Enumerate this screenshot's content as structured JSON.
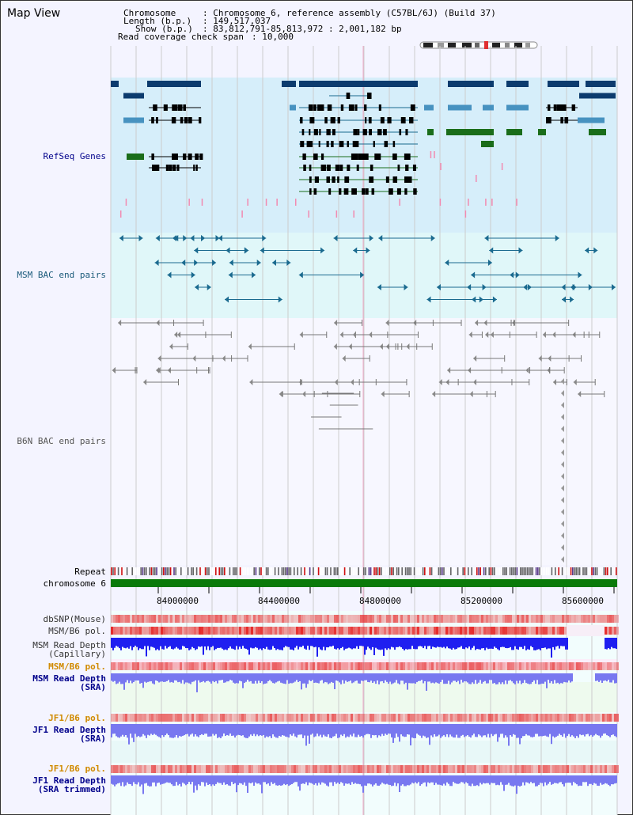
{
  "title": "Map View",
  "info": {
    "chromosome_key": "Chromosome",
    "chromosome_val": ": Chromosome 6, reference assembly (C57BL/6J) (Build 37)",
    "length_key": "Length (b.p.)",
    "length_val": ": 149,517,037",
    "show_key": "Show (b.p.)",
    "show_val": ": 83,812,791-85,813,972 : 2,001,182 bp",
    "span_key": "Read coverage check span",
    "span_val": ": 10,000"
  },
  "tracks": {
    "refseq": "RefSeq Genes",
    "msm_bac": "MSM BAC end pairs",
    "b6n_bac": "B6N BAC end pairs",
    "repeat": "Repeat",
    "chromosome": "chromosome 6",
    "dbsnp": "dbSNP(Mouse)",
    "msm_b6_pol_1": "MSM/B6 pol.",
    "msm_depth_cap": "MSM Read Depth\n(Capillary)",
    "msm_b6_pol_2": "MSM/B6 pol.",
    "msm_depth_sra": "MSM Read Depth\n(SRA)",
    "jf1_b6_pol_1": "JF1/B6 pol.",
    "jf1_depth_sra": "JF1 Read Depth\n(SRA)",
    "jf1_b6_pol_2": "JF1/B6 pol.",
    "jf1_depth_trim": "JF1 Read Depth\n(SRA trimmed)"
  },
  "axis_ticks": [
    "84000000",
    "84400000",
    "84800000",
    "85200000",
    "85600000"
  ],
  "colors": {
    "refseq_bg": "#d6eefa",
    "msm_bg": "#e0f7f9",
    "gene_dark": "#0c3b6e",
    "gene_mid": "#4792c0",
    "gene_green": "#1a6d1a",
    "msm_blue": "#1a6a8f",
    "b6n_gray": "#666666",
    "pink": "#f28ab0",
    "chrom_green": "#0a7a0a",
    "depth_blue": "#1f1ff0",
    "depth_light": "#7878f0",
    "label_blue": "#00008b",
    "label_orange": "#d08a00",
    "label_teal": "#1a5a7a"
  }
}
